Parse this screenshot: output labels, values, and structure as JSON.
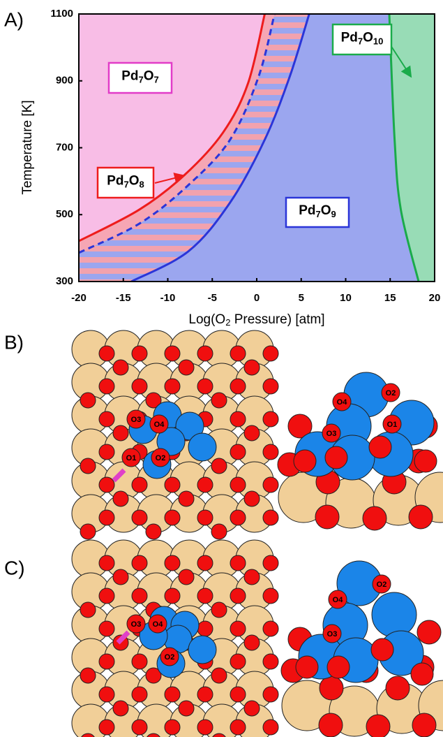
{
  "panels": {
    "a": "A)",
    "b": "B)",
    "c": "C)"
  },
  "chart_data": {
    "type": "line",
    "xlabel": [
      "Log(O",
      "2",
      " Pressure) [atm]"
    ],
    "ylabel": "Temperature [K]",
    "xlim": [
      -20,
      20
    ],
    "ylim": [
      300,
      1100
    ],
    "xticks": [
      -20,
      -15,
      -10,
      -5,
      0,
      5,
      10,
      15,
      20
    ],
    "yticks": [
      300,
      500,
      700,
      900,
      1100
    ],
    "background": "#9ba6ef",
    "series": [
      {
        "color": "#2b35d8",
        "style": "solid",
        "fill": "#f2a2ae",
        "side": "left",
        "x": [
          -14.1,
          -7.7,
          -3,
          0.9,
          3.7,
          5.9
        ],
        "values": [
          300,
          390,
          536,
          724,
          912,
          1100
        ]
      },
      {
        "color": "#2b35d8",
        "style": "dashed",
        "fill": "#f6a6b4",
        "side": "left",
        "x": [
          -20,
          -13.2,
          -7.7,
          -3,
          0.2,
          2
        ],
        "values": [
          386,
          473,
          588,
          724,
          912,
          1100
        ]
      },
      {
        "color": "#ee1c1c",
        "style": "solid",
        "fill": "#f8bde6",
        "side": "left",
        "x": [
          -20,
          -13.2,
          -8.1,
          -3.8,
          -1,
          0.9
        ],
        "values": [
          421,
          515,
          619,
          745,
          891,
          1100
        ]
      },
      {
        "color": "#1aab4a",
        "style": "solid",
        "fill": "#98dcb6",
        "side": "right",
        "x": [
          14.9,
          15.5,
          16.2,
          18.2
        ],
        "values": [
          1100,
          724,
          515,
          300
        ]
      }
    ],
    "annotations": [
      {
        "text": [
          "Pd",
          "7",
          "O",
          "7"
        ],
        "color": "#e23cc8"
      },
      {
        "text": [
          "Pd",
          "7",
          "O",
          "8"
        ],
        "color": "#ee1c1c"
      },
      {
        "text": [
          "Pd",
          "7",
          "O",
          "9"
        ],
        "color": "#2b35d8"
      },
      {
        "text": [
          "Pd",
          "7",
          "O",
          "10"
        ],
        "color": "#1aab4a"
      }
    ]
  },
  "structures": {
    "b_top": [
      "O3",
      "O4",
      "O1",
      "O2"
    ],
    "b_side": [
      "O4",
      "O2",
      "O3",
      "O1"
    ],
    "c_top": [
      "O3",
      "O4",
      "O2"
    ],
    "c_side": [
      "O2",
      "O4",
      "O3"
    ]
  }
}
